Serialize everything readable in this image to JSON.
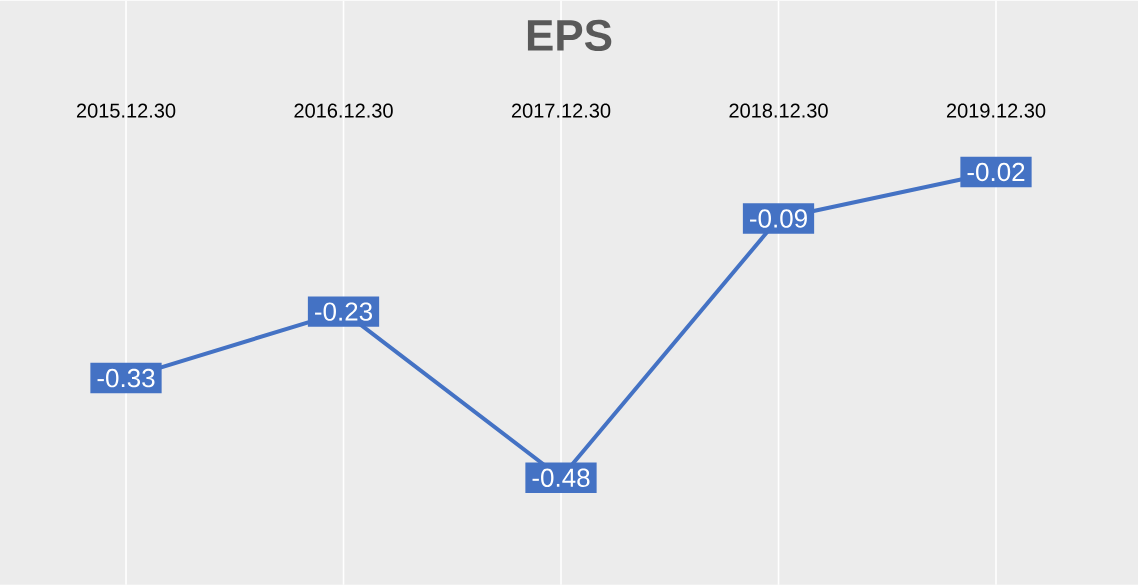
{
  "chart_data": {
    "type": "line",
    "title": "EPS",
    "categories": [
      "2015.12.30",
      "2016.12.30",
      "2017.12.30",
      "2018.12.30",
      "2019.12.30"
    ],
    "series": [
      {
        "color": "#4472c4",
        "values": [
          -0.33,
          -0.23,
          -0.48,
          -0.09,
          -0.02
        ]
      }
    ],
    "data_labels": true,
    "grid": "x",
    "line_style": "solid",
    "marker": "square"
  }
}
